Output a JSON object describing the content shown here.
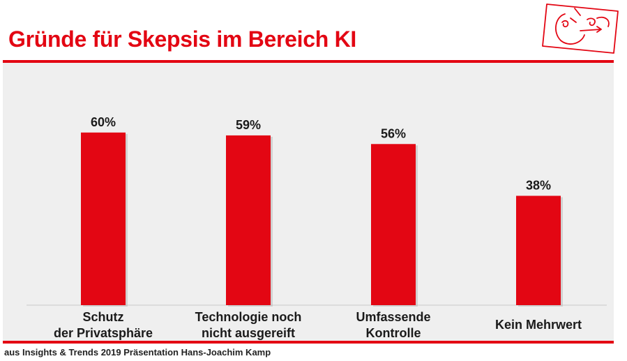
{
  "title": "Gründe für Skepsis im Bereich KI",
  "source": "aus Insights & Trends 2019 Präsentation Hans-Joachim Kamp",
  "colors": {
    "accent": "#e30613",
    "panel": "#efefef",
    "text": "#1a1a1a"
  },
  "logo": {
    "icon": "face-sketch-icon"
  },
  "chart_data": {
    "type": "bar",
    "categories": [
      [
        "Schutz",
        "der Privatsphäre"
      ],
      [
        "Technologie noch",
        "nicht ausgereift"
      ],
      [
        "Umfassende",
        "Kontrolle"
      ],
      [
        "Kein Mehrwert"
      ]
    ],
    "values": [
      60,
      59,
      56,
      38
    ],
    "value_labels": [
      "60%",
      "59%",
      "56%",
      "38%"
    ],
    "title": "Gründe für Skepsis im Bereich KI",
    "xlabel": "",
    "ylabel": "",
    "ylim": [
      0,
      75
    ],
    "grid": false,
    "legend": "none"
  }
}
